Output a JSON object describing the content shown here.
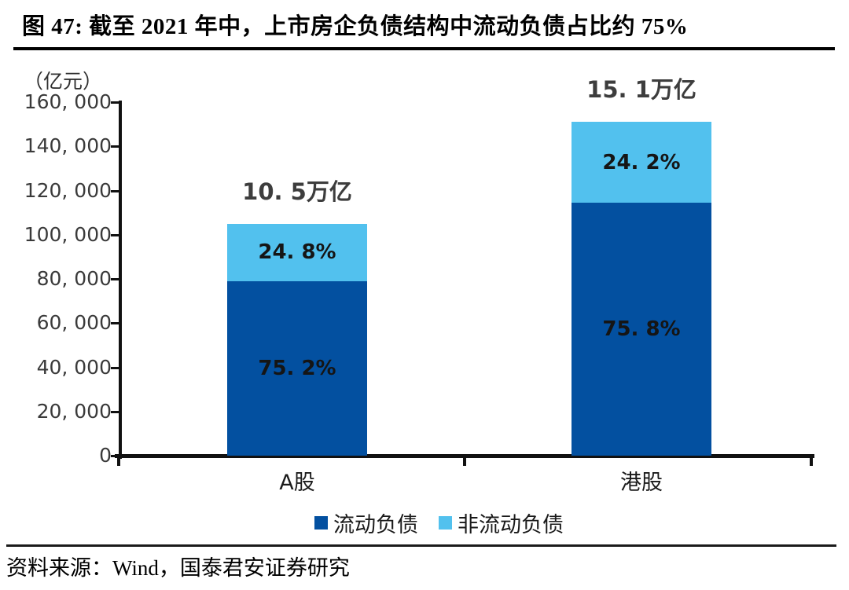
{
  "figure": {
    "title": "图 47:  截至 2021 年中，上市房企负债结构中流动负债占比约 75%",
    "source": "资料来源：Wind，国泰君安证券研究"
  },
  "chart_data": {
    "type": "bar",
    "stacked": true,
    "title": "截至 2021 年中，上市房企负债结构中流动负债占比约 75%",
    "unit_label": "（亿元）",
    "categories": [
      "A股",
      "港股"
    ],
    "series": [
      {
        "name": "流动负债",
        "color": "#0350A0",
        "values": [
          78960,
          114458
        ],
        "pct_labels": [
          "75. 2%",
          "75. 8%"
        ]
      },
      {
        "name": "非流动负债",
        "color": "#52C1EE",
        "values": [
          26040,
          36542
        ],
        "pct_labels": [
          "24. 8%",
          "24. 2%"
        ]
      }
    ],
    "totals": [
      105000,
      151000
    ],
    "total_labels": [
      "10. 5万亿",
      "15. 1万亿"
    ],
    "ylim": [
      0,
      160000
    ],
    "ytick_step": 20000,
    "ytick_labels": [
      "0",
      "20, 000",
      "40, 000",
      "60, 000",
      "80, 000",
      "100, 000",
      "120, 000",
      "140, 000",
      "160, 000"
    ],
    "legend_position": "bottom",
    "grid": false,
    "colors": {
      "current_liabilities": "#0350A0",
      "non_current_liabilities": "#52C1EE",
      "axis": "#111111"
    }
  }
}
